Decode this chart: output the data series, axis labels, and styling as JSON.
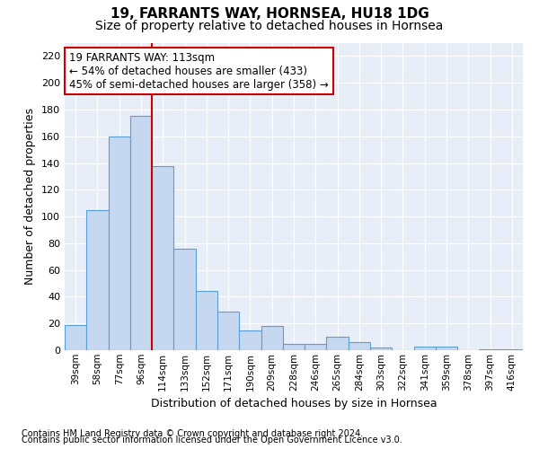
{
  "title1": "19, FARRANTS WAY, HORNSEA, HU18 1DG",
  "title2": "Size of property relative to detached houses in Hornsea",
  "xlabel": "Distribution of detached houses by size in Hornsea",
  "ylabel": "Number of detached properties",
  "footnote1": "Contains HM Land Registry data © Crown copyright and database right 2024.",
  "footnote2": "Contains public sector information licensed under the Open Government Licence v3.0.",
  "categories": [
    "39sqm",
    "58sqm",
    "77sqm",
    "96sqm",
    "114sqm",
    "133sqm",
    "152sqm",
    "171sqm",
    "190sqm",
    "209sqm",
    "228sqm",
    "246sqm",
    "265sqm",
    "284sqm",
    "303sqm",
    "322sqm",
    "341sqm",
    "359sqm",
    "378sqm",
    "397sqm",
    "416sqm"
  ],
  "values": [
    19,
    105,
    160,
    175,
    138,
    76,
    44,
    29,
    15,
    18,
    5,
    5,
    10,
    6,
    2,
    0,
    3,
    3,
    0,
    1,
    1
  ],
  "bar_color": "#c5d8f0",
  "bar_edge_color": "#5a9fd4",
  "vline_x_index": 4,
  "vline_color": "#cc0000",
  "annotation_line1": "19 FARRANTS WAY: 113sqm",
  "annotation_line2": "← 54% of detached houses are smaller (433)",
  "annotation_line3": "45% of semi-detached houses are larger (358) →",
  "annotation_box_color": "#ffffff",
  "annotation_box_edge": "#cc0000",
  "ylim": [
    0,
    230
  ],
  "yticks": [
    0,
    20,
    40,
    60,
    80,
    100,
    120,
    140,
    160,
    180,
    200,
    220
  ],
  "fig_bg_color": "#ffffff",
  "plot_bg_color": "#e8eef8",
  "grid_color": "#ffffff",
  "title1_fontsize": 11,
  "title2_fontsize": 10,
  "xlabel_fontsize": 9,
  "ylabel_fontsize": 9,
  "footnote_fontsize": 7
}
